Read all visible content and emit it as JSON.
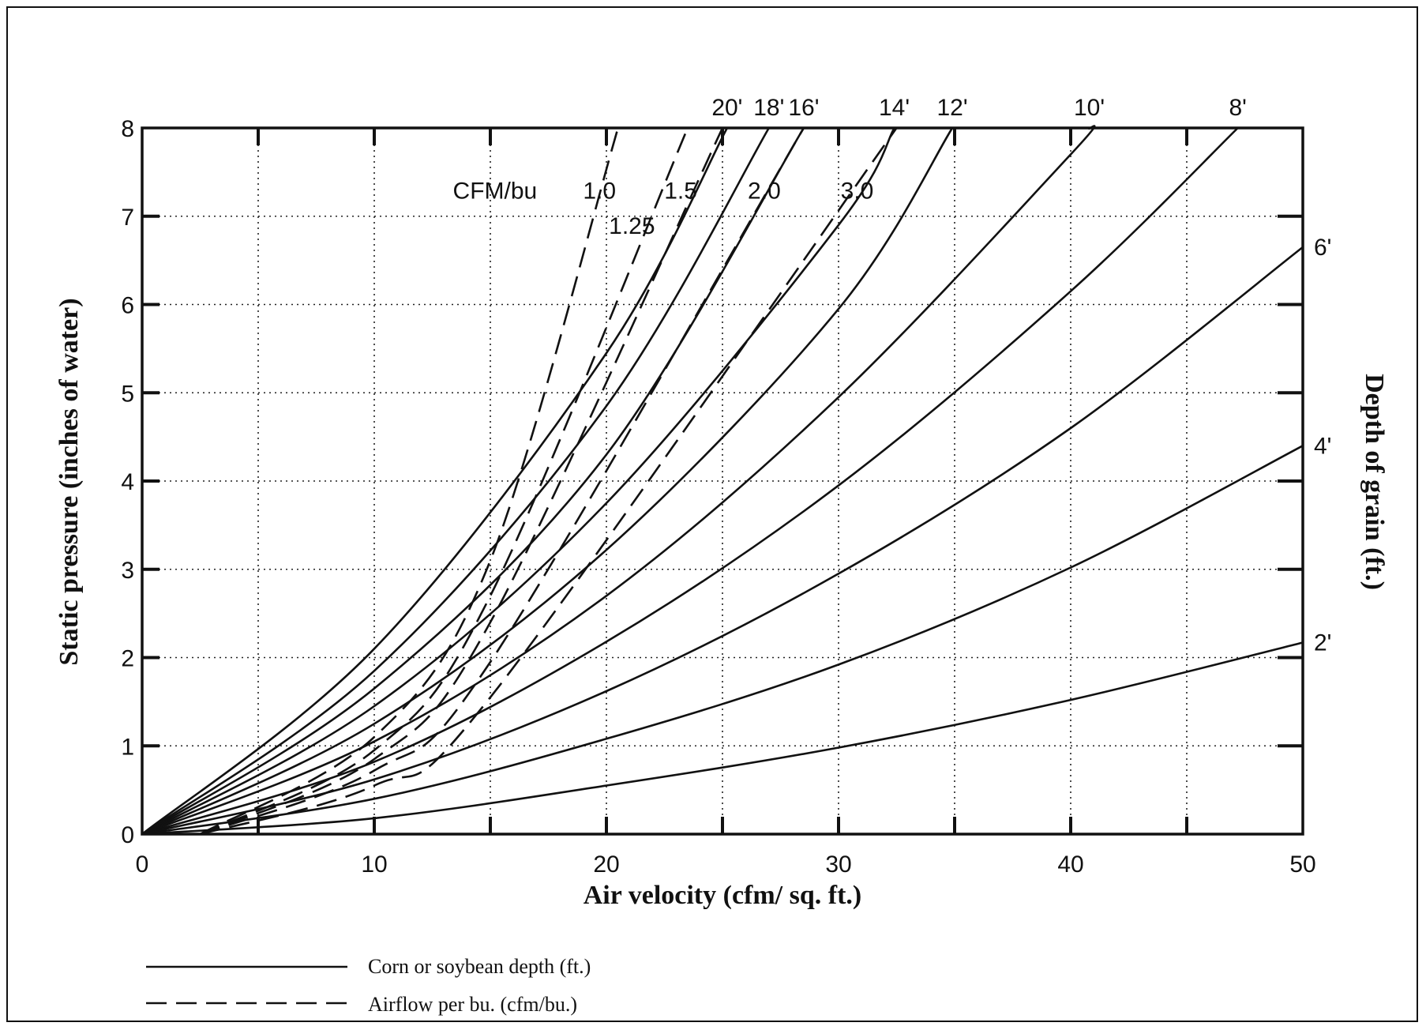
{
  "chart_data": {
    "type": "line",
    "title": "",
    "xlabel": "Air velocity (cfm/ sq. ft.)",
    "ylabel": "Static pressure (inches of water)",
    "right_label": "Depth of grain (ft.)",
    "xlim": [
      0,
      50
    ],
    "ylim": [
      0,
      8
    ],
    "x_ticks": [
      0,
      10,
      20,
      30,
      40,
      50
    ],
    "y_ticks": [
      0,
      1,
      2,
      3,
      4,
      5,
      6,
      7,
      8
    ],
    "grid": true,
    "cfm_title": "CFM/bu",
    "depth_series": [
      {
        "label": "2'",
        "x": [
          0,
          10,
          20,
          30,
          40,
          50
        ],
        "y": [
          0,
          0.18,
          0.55,
          0.98,
          1.52,
          2.17
        ]
      },
      {
        "label": "4'",
        "x": [
          0,
          10,
          20,
          30,
          40,
          50
        ],
        "y": [
          0,
          0.4,
          1.08,
          1.92,
          3.02,
          4.4
        ]
      },
      {
        "label": "6'",
        "x": [
          0,
          10,
          20,
          30,
          40,
          50
        ],
        "y": [
          0,
          0.62,
          1.62,
          2.95,
          4.6,
          6.65
        ]
      },
      {
        "label": "8'",
        "x": [
          0,
          10,
          20,
          30,
          40,
          47.2
        ],
        "y": [
          0,
          0.82,
          2.18,
          3.95,
          6.15,
          8.0
        ]
      },
      {
        "label": "10'",
        "x": [
          0,
          10,
          20,
          30,
          40,
          40.8
        ],
        "y": [
          0,
          1.05,
          2.7,
          4.95,
          7.7,
          8.0
        ]
      },
      {
        "label": "12'",
        "x": [
          0,
          10,
          20,
          30,
          34.9
        ],
        "y": [
          0,
          1.25,
          3.22,
          5.95,
          8.0
        ]
      },
      {
        "label": "14'",
        "x": [
          0,
          10,
          20,
          30,
          32.4
        ],
        "y": [
          0,
          1.45,
          3.75,
          6.9,
          8.0
        ]
      },
      {
        "label": "16'",
        "x": [
          0,
          10,
          20,
          28.5
        ],
        "y": [
          0,
          1.65,
          4.3,
          8.0
        ]
      },
      {
        "label": "18'",
        "x": [
          0,
          10,
          20,
          27.0
        ],
        "y": [
          0,
          1.85,
          4.85,
          8.0
        ]
      },
      {
        "label": "20'",
        "x": [
          0,
          10,
          20,
          25.2
        ],
        "y": [
          0,
          2.1,
          5.45,
          8.0
        ]
      }
    ],
    "cfm_series": [
      {
        "label": "1.0",
        "x": [
          2.5,
          10,
          15,
          20.5
        ],
        "y": [
          0,
          1.1,
          3.1,
          8.0
        ]
      },
      {
        "label": "1.25",
        "x": [
          2.5,
          10,
          15,
          23.5
        ],
        "y": [
          0,
          0.95,
          2.7,
          8.0
        ]
      },
      {
        "label": "1.5",
        "x": [
          2.5,
          10,
          15,
          25.0
        ],
        "y": [
          0,
          0.85,
          2.4,
          8.0
        ]
      },
      {
        "label": "2.0",
        "x": [
          2.5,
          10,
          15,
          28.5
        ],
        "y": [
          0,
          0.72,
          1.95,
          8.0
        ]
      },
      {
        "label": "3.0",
        "x": [
          2.5,
          10,
          15,
          32.5
        ],
        "y": [
          0,
          0.55,
          1.55,
          8.0
        ]
      }
    ]
  },
  "legend": [
    {
      "style": "solid",
      "label": "Corn or soybean depth (ft.)"
    },
    {
      "style": "dashed",
      "label": "Airflow per bu. (cfm/bu.)"
    }
  ]
}
